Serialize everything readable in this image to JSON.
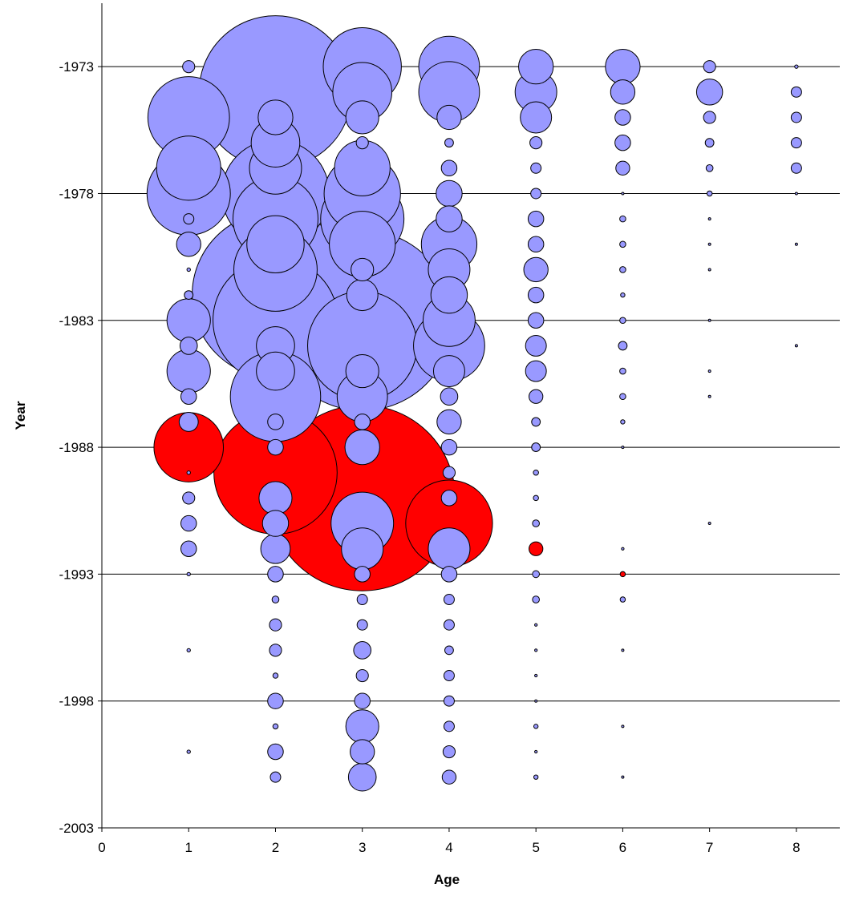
{
  "chart_data": {
    "type": "bubble",
    "title": "",
    "xlabel": "Age",
    "ylabel": "Year",
    "xlim": [
      0,
      8.5
    ],
    "ylim": [
      -2003,
      -1970.5
    ],
    "x_ticks": [
      0,
      1,
      2,
      3,
      4,
      5,
      6,
      7,
      8
    ],
    "y_ticks": [
      -1973,
      -1978,
      -1983,
      -1988,
      -1993,
      -1998,
      -2003
    ],
    "x_tick_labels": [
      "0",
      "1",
      "2",
      "3",
      "4",
      "5",
      "6",
      "7",
      "8"
    ],
    "y_tick_labels": [
      "-1973",
      "-1978",
      "-1983",
      "-1988",
      "-1993",
      "-1998",
      "-2003"
    ],
    "grid": "horizontal",
    "colors": {
      "positive": "#9999ff",
      "negative": "#ff0000",
      "edge": "#000000",
      "grid": "#000000"
    },
    "size_unit_note": "r is bubble radius in age-axis units",
    "points": [
      {
        "age": 1,
        "year": -1973,
        "r": 0.07,
        "sign": "positive"
      },
      {
        "age": 1,
        "year": -1975,
        "r": 0.47,
        "sign": "positive"
      },
      {
        "age": 1,
        "year": -1977,
        "r": 0.37,
        "sign": "positive"
      },
      {
        "age": 1,
        "year": -1978,
        "r": 0.48,
        "sign": "positive"
      },
      {
        "age": 1,
        "year": -1979,
        "r": 0.06,
        "sign": "positive"
      },
      {
        "age": 1,
        "year": -1980,
        "r": 0.14,
        "sign": "positive"
      },
      {
        "age": 1,
        "year": -1981,
        "r": 0.02,
        "sign": "positive"
      },
      {
        "age": 1,
        "year": -1982,
        "r": 0.05,
        "sign": "positive"
      },
      {
        "age": 1,
        "year": -1983,
        "r": 0.25,
        "sign": "positive"
      },
      {
        "age": 1,
        "year": -1984,
        "r": 0.1,
        "sign": "positive"
      },
      {
        "age": 1,
        "year": -1985,
        "r": 0.25,
        "sign": "positive"
      },
      {
        "age": 1,
        "year": -1986,
        "r": 0.09,
        "sign": "positive"
      },
      {
        "age": 1,
        "year": -1987,
        "r": 0.11,
        "sign": "positive"
      },
      {
        "age": 1,
        "year": -1988,
        "r": 0.4,
        "sign": "negative"
      },
      {
        "age": 1,
        "year": -1989,
        "r": 0.02,
        "sign": "positive"
      },
      {
        "age": 1,
        "year": -1990,
        "r": 0.07,
        "sign": "positive"
      },
      {
        "age": 1,
        "year": -1991,
        "r": 0.09,
        "sign": "positive"
      },
      {
        "age": 1,
        "year": -1992,
        "r": 0.09,
        "sign": "positive"
      },
      {
        "age": 1,
        "year": -1993,
        "r": 0.02,
        "sign": "positive"
      },
      {
        "age": 1,
        "year": -1996,
        "r": 0.02,
        "sign": "positive"
      },
      {
        "age": 1,
        "year": -2000,
        "r": 0.02,
        "sign": "positive"
      },
      {
        "age": 2,
        "year": -1974,
        "r": 0.88,
        "sign": "positive"
      },
      {
        "age": 2,
        "year": -1975,
        "r": 0.2,
        "sign": "positive"
      },
      {
        "age": 2,
        "year": -1976,
        "r": 0.28,
        "sign": "positive"
      },
      {
        "age": 2,
        "year": -1977,
        "r": 0.3,
        "sign": "positive"
      },
      {
        "age": 2,
        "year": -1978,
        "r": 0.62,
        "sign": "positive"
      },
      {
        "age": 2,
        "year": -1979,
        "r": 0.49,
        "sign": "positive"
      },
      {
        "age": 2,
        "year": -1980,
        "r": 0.33,
        "sign": "positive"
      },
      {
        "age": 2,
        "year": -1981,
        "r": 0.48,
        "sign": "positive"
      },
      {
        "age": 2,
        "year": -1982,
        "r": 0.96,
        "sign": "positive"
      },
      {
        "age": 2,
        "year": -1983,
        "r": 0.72,
        "sign": "positive"
      },
      {
        "age": 2,
        "year": -1984,
        "r": 0.22,
        "sign": "positive"
      },
      {
        "age": 2,
        "year": -1985,
        "r": 0.22,
        "sign": "positive"
      },
      {
        "age": 2,
        "year": -1986,
        "r": 0.52,
        "sign": "positive"
      },
      {
        "age": 2,
        "year": -1987,
        "r": 0.09,
        "sign": "positive"
      },
      {
        "age": 2,
        "year": -1988,
        "r": 0.09,
        "sign": "positive"
      },
      {
        "age": 2,
        "year": -1989,
        "r": 0.71,
        "sign": "negative"
      },
      {
        "age": 2,
        "year": -1990,
        "r": 0.19,
        "sign": "positive"
      },
      {
        "age": 2,
        "year": -1991,
        "r": 0.15,
        "sign": "positive"
      },
      {
        "age": 2,
        "year": -1992,
        "r": 0.17,
        "sign": "positive"
      },
      {
        "age": 2,
        "year": -1993,
        "r": 0.09,
        "sign": "positive"
      },
      {
        "age": 2,
        "year": -1994,
        "r": 0.04,
        "sign": "positive"
      },
      {
        "age": 2,
        "year": -1995,
        "r": 0.07,
        "sign": "positive"
      },
      {
        "age": 2,
        "year": -1996,
        "r": 0.07,
        "sign": "positive"
      },
      {
        "age": 2,
        "year": -1997,
        "r": 0.03,
        "sign": "positive"
      },
      {
        "age": 2,
        "year": -1998,
        "r": 0.09,
        "sign": "positive"
      },
      {
        "age": 2,
        "year": -1999,
        "r": 0.03,
        "sign": "positive"
      },
      {
        "age": 2,
        "year": -2000,
        "r": 0.09,
        "sign": "positive"
      },
      {
        "age": 2,
        "year": -2001,
        "r": 0.06,
        "sign": "positive"
      },
      {
        "age": 3,
        "year": -1973,
        "r": 0.45,
        "sign": "positive"
      },
      {
        "age": 3,
        "year": -1974,
        "r": 0.34,
        "sign": "positive"
      },
      {
        "age": 3,
        "year": -1975,
        "r": 0.19,
        "sign": "positive"
      },
      {
        "age": 3,
        "year": -1976,
        "r": 0.07,
        "sign": "positive"
      },
      {
        "age": 3,
        "year": -1977,
        "r": 0.32,
        "sign": "positive"
      },
      {
        "age": 3,
        "year": -1978,
        "r": 0.44,
        "sign": "positive"
      },
      {
        "age": 3,
        "year": -1979,
        "r": 0.48,
        "sign": "positive"
      },
      {
        "age": 3,
        "year": -1980,
        "r": 0.38,
        "sign": "positive"
      },
      {
        "age": 3,
        "year": -1981,
        "r": 0.13,
        "sign": "positive"
      },
      {
        "age": 3,
        "year": -1982,
        "r": 0.18,
        "sign": "positive"
      },
      {
        "age": 3,
        "year": -1983,
        "r": 1.04,
        "sign": "positive"
      },
      {
        "age": 3,
        "year": -1984,
        "r": 0.63,
        "sign": "positive"
      },
      {
        "age": 3,
        "year": -1985,
        "r": 0.19,
        "sign": "positive"
      },
      {
        "age": 3,
        "year": -1986,
        "r": 0.29,
        "sign": "positive"
      },
      {
        "age": 3,
        "year": -1987,
        "r": 0.09,
        "sign": "positive"
      },
      {
        "age": 3,
        "year": -1988,
        "r": 0.2,
        "sign": "positive"
      },
      {
        "age": 3,
        "year": -1990,
        "r": 1.07,
        "sign": "negative"
      },
      {
        "age": 3,
        "year": -1991,
        "r": 0.36,
        "sign": "positive"
      },
      {
        "age": 3,
        "year": -1992,
        "r": 0.24,
        "sign": "positive"
      },
      {
        "age": 3,
        "year": -1993,
        "r": 0.09,
        "sign": "positive"
      },
      {
        "age": 3,
        "year": -1994,
        "r": 0.06,
        "sign": "positive"
      },
      {
        "age": 3,
        "year": -1995,
        "r": 0.06,
        "sign": "positive"
      },
      {
        "age": 3,
        "year": -1996,
        "r": 0.1,
        "sign": "positive"
      },
      {
        "age": 3,
        "year": -1997,
        "r": 0.07,
        "sign": "positive"
      },
      {
        "age": 3,
        "year": -1998,
        "r": 0.09,
        "sign": "positive"
      },
      {
        "age": 3,
        "year": -1999,
        "r": 0.19,
        "sign": "positive"
      },
      {
        "age": 3,
        "year": -2000,
        "r": 0.14,
        "sign": "positive"
      },
      {
        "age": 3,
        "year": -2001,
        "r": 0.16,
        "sign": "positive"
      },
      {
        "age": 4,
        "year": -1973,
        "r": 0.35,
        "sign": "positive"
      },
      {
        "age": 4,
        "year": -1974,
        "r": 0.35,
        "sign": "positive"
      },
      {
        "age": 4,
        "year": -1975,
        "r": 0.14,
        "sign": "positive"
      },
      {
        "age": 4,
        "year": -1976,
        "r": 0.05,
        "sign": "positive"
      },
      {
        "age": 4,
        "year": -1977,
        "r": 0.09,
        "sign": "positive"
      },
      {
        "age": 4,
        "year": -1978,
        "r": 0.15,
        "sign": "positive"
      },
      {
        "age": 4,
        "year": -1979,
        "r": 0.15,
        "sign": "positive"
      },
      {
        "age": 4,
        "year": -1980,
        "r": 0.32,
        "sign": "positive"
      },
      {
        "age": 4,
        "year": -1981,
        "r": 0.24,
        "sign": "positive"
      },
      {
        "age": 4,
        "year": -1982,
        "r": 0.21,
        "sign": "positive"
      },
      {
        "age": 4,
        "year": -1983,
        "r": 0.3,
        "sign": "positive"
      },
      {
        "age": 4,
        "year": -1984,
        "r": 0.41,
        "sign": "positive"
      },
      {
        "age": 4,
        "year": -1985,
        "r": 0.18,
        "sign": "positive"
      },
      {
        "age": 4,
        "year": -1986,
        "r": 0.1,
        "sign": "positive"
      },
      {
        "age": 4,
        "year": -1987,
        "r": 0.14,
        "sign": "positive"
      },
      {
        "age": 4,
        "year": -1988,
        "r": 0.09,
        "sign": "positive"
      },
      {
        "age": 4,
        "year": -1989,
        "r": 0.07,
        "sign": "positive"
      },
      {
        "age": 4,
        "year": -1990,
        "r": 0.09,
        "sign": "positive"
      },
      {
        "age": 4,
        "year": -1991,
        "r": 0.5,
        "sign": "negative"
      },
      {
        "age": 4,
        "year": -1992,
        "r": 0.24,
        "sign": "positive"
      },
      {
        "age": 4,
        "year": -1993,
        "r": 0.09,
        "sign": "positive"
      },
      {
        "age": 4,
        "year": -1994,
        "r": 0.06,
        "sign": "positive"
      },
      {
        "age": 4,
        "year": -1995,
        "r": 0.06,
        "sign": "positive"
      },
      {
        "age": 4,
        "year": -1996,
        "r": 0.05,
        "sign": "positive"
      },
      {
        "age": 4,
        "year": -1997,
        "r": 0.06,
        "sign": "positive"
      },
      {
        "age": 4,
        "year": -1998,
        "r": 0.06,
        "sign": "positive"
      },
      {
        "age": 4,
        "year": -1999,
        "r": 0.06,
        "sign": "positive"
      },
      {
        "age": 4,
        "year": -2000,
        "r": 0.07,
        "sign": "positive"
      },
      {
        "age": 4,
        "year": -2001,
        "r": 0.08,
        "sign": "positive"
      },
      {
        "age": 5,
        "year": -1973,
        "r": 0.2,
        "sign": "positive"
      },
      {
        "age": 5,
        "year": -1974,
        "r": 0.24,
        "sign": "positive"
      },
      {
        "age": 5,
        "year": -1975,
        "r": 0.18,
        "sign": "positive"
      },
      {
        "age": 5,
        "year": -1976,
        "r": 0.07,
        "sign": "positive"
      },
      {
        "age": 5,
        "year": -1977,
        "r": 0.06,
        "sign": "positive"
      },
      {
        "age": 5,
        "year": -1978,
        "r": 0.06,
        "sign": "positive"
      },
      {
        "age": 5,
        "year": -1979,
        "r": 0.09,
        "sign": "positive"
      },
      {
        "age": 5,
        "year": -1980,
        "r": 0.09,
        "sign": "positive"
      },
      {
        "age": 5,
        "year": -1981,
        "r": 0.14,
        "sign": "positive"
      },
      {
        "age": 5,
        "year": -1982,
        "r": 0.09,
        "sign": "positive"
      },
      {
        "age": 5,
        "year": -1983,
        "r": 0.09,
        "sign": "positive"
      },
      {
        "age": 5,
        "year": -1984,
        "r": 0.12,
        "sign": "positive"
      },
      {
        "age": 5,
        "year": -1985,
        "r": 0.12,
        "sign": "positive"
      },
      {
        "age": 5,
        "year": -1986,
        "r": 0.08,
        "sign": "positive"
      },
      {
        "age": 5,
        "year": -1987,
        "r": 0.05,
        "sign": "positive"
      },
      {
        "age": 5,
        "year": -1988,
        "r": 0.05,
        "sign": "positive"
      },
      {
        "age": 5,
        "year": -1989,
        "r": 0.03,
        "sign": "positive"
      },
      {
        "age": 5,
        "year": -1990,
        "r": 0.03,
        "sign": "positive"
      },
      {
        "age": 5,
        "year": -1991,
        "r": 0.04,
        "sign": "positive"
      },
      {
        "age": 5,
        "year": -1992,
        "r": 0.08,
        "sign": "negative"
      },
      {
        "age": 5,
        "year": -1993,
        "r": 0.04,
        "sign": "positive"
      },
      {
        "age": 5,
        "year": -1994,
        "r": 0.04,
        "sign": "positive"
      },
      {
        "age": 5,
        "year": -1995,
        "r": 0.015,
        "sign": "positive"
      },
      {
        "age": 5,
        "year": -1996,
        "r": 0.015,
        "sign": "positive"
      },
      {
        "age": 5,
        "year": -1997,
        "r": 0.015,
        "sign": "positive"
      },
      {
        "age": 5,
        "year": -1998,
        "r": 0.01,
        "sign": "positive"
      },
      {
        "age": 5,
        "year": -1999,
        "r": 0.025,
        "sign": "positive"
      },
      {
        "age": 5,
        "year": -2000,
        "r": 0.015,
        "sign": "positive"
      },
      {
        "age": 5,
        "year": -2001,
        "r": 0.025,
        "sign": "positive"
      },
      {
        "age": 6,
        "year": -1973,
        "r": 0.2,
        "sign": "positive"
      },
      {
        "age": 6,
        "year": -1974,
        "r": 0.14,
        "sign": "positive"
      },
      {
        "age": 6,
        "year": -1975,
        "r": 0.09,
        "sign": "positive"
      },
      {
        "age": 6,
        "year": -1976,
        "r": 0.09,
        "sign": "positive"
      },
      {
        "age": 6,
        "year": -1977,
        "r": 0.08,
        "sign": "positive"
      },
      {
        "age": 6,
        "year": -1978,
        "r": 0.01,
        "sign": "positive"
      },
      {
        "age": 6,
        "year": -1979,
        "r": 0.035,
        "sign": "positive"
      },
      {
        "age": 6,
        "year": -1980,
        "r": 0.035,
        "sign": "positive"
      },
      {
        "age": 6,
        "year": -1981,
        "r": 0.035,
        "sign": "positive"
      },
      {
        "age": 6,
        "year": -1982,
        "r": 0.025,
        "sign": "positive"
      },
      {
        "age": 6,
        "year": -1983,
        "r": 0.035,
        "sign": "positive"
      },
      {
        "age": 6,
        "year": -1984,
        "r": 0.05,
        "sign": "positive"
      },
      {
        "age": 6,
        "year": -1985,
        "r": 0.035,
        "sign": "positive"
      },
      {
        "age": 6,
        "year": -1986,
        "r": 0.035,
        "sign": "positive"
      },
      {
        "age": 6,
        "year": -1987,
        "r": 0.025,
        "sign": "positive"
      },
      {
        "age": 6,
        "year": -1988,
        "r": 0.01,
        "sign": "positive"
      },
      {
        "age": 6,
        "year": -1992,
        "r": 0.015,
        "sign": "positive"
      },
      {
        "age": 6,
        "year": -1993,
        "r": 0.03,
        "sign": "negative"
      },
      {
        "age": 6,
        "year": -1994,
        "r": 0.03,
        "sign": "positive"
      },
      {
        "age": 6,
        "year": -1996,
        "r": 0.01,
        "sign": "positive"
      },
      {
        "age": 6,
        "year": -1999,
        "r": 0.01,
        "sign": "positive"
      },
      {
        "age": 6,
        "year": -2001,
        "r": 0.01,
        "sign": "positive"
      },
      {
        "age": 7,
        "year": -1973,
        "r": 0.07,
        "sign": "positive"
      },
      {
        "age": 7,
        "year": -1974,
        "r": 0.15,
        "sign": "positive"
      },
      {
        "age": 7,
        "year": -1975,
        "r": 0.07,
        "sign": "positive"
      },
      {
        "age": 7,
        "year": -1976,
        "r": 0.05,
        "sign": "positive"
      },
      {
        "age": 7,
        "year": -1977,
        "r": 0.04,
        "sign": "positive"
      },
      {
        "age": 7,
        "year": -1978,
        "r": 0.03,
        "sign": "positive"
      },
      {
        "age": 7,
        "year": -1979,
        "r": 0.01,
        "sign": "positive"
      },
      {
        "age": 7,
        "year": -1980,
        "r": 0.01,
        "sign": "positive"
      },
      {
        "age": 7,
        "year": -1981,
        "r": 0.01,
        "sign": "positive"
      },
      {
        "age": 7,
        "year": -1983,
        "r": 0.01,
        "sign": "positive"
      },
      {
        "age": 7,
        "year": -1985,
        "r": 0.01,
        "sign": "positive"
      },
      {
        "age": 7,
        "year": -1986,
        "r": 0.01,
        "sign": "positive"
      },
      {
        "age": 7,
        "year": -1991,
        "r": 0.01,
        "sign": "positive"
      },
      {
        "age": 8,
        "year": -1973,
        "r": 0.02,
        "sign": "positive"
      },
      {
        "age": 8,
        "year": -1974,
        "r": 0.06,
        "sign": "positive"
      },
      {
        "age": 8,
        "year": -1975,
        "r": 0.06,
        "sign": "positive"
      },
      {
        "age": 8,
        "year": -1976,
        "r": 0.06,
        "sign": "positive"
      },
      {
        "age": 8,
        "year": -1977,
        "r": 0.06,
        "sign": "positive"
      },
      {
        "age": 8,
        "year": -1978,
        "r": 0.008,
        "sign": "positive"
      },
      {
        "age": 8,
        "year": -1980,
        "r": 0.008,
        "sign": "positive"
      },
      {
        "age": 8,
        "year": -1984,
        "r": 0.008,
        "sign": "positive"
      }
    ]
  }
}
